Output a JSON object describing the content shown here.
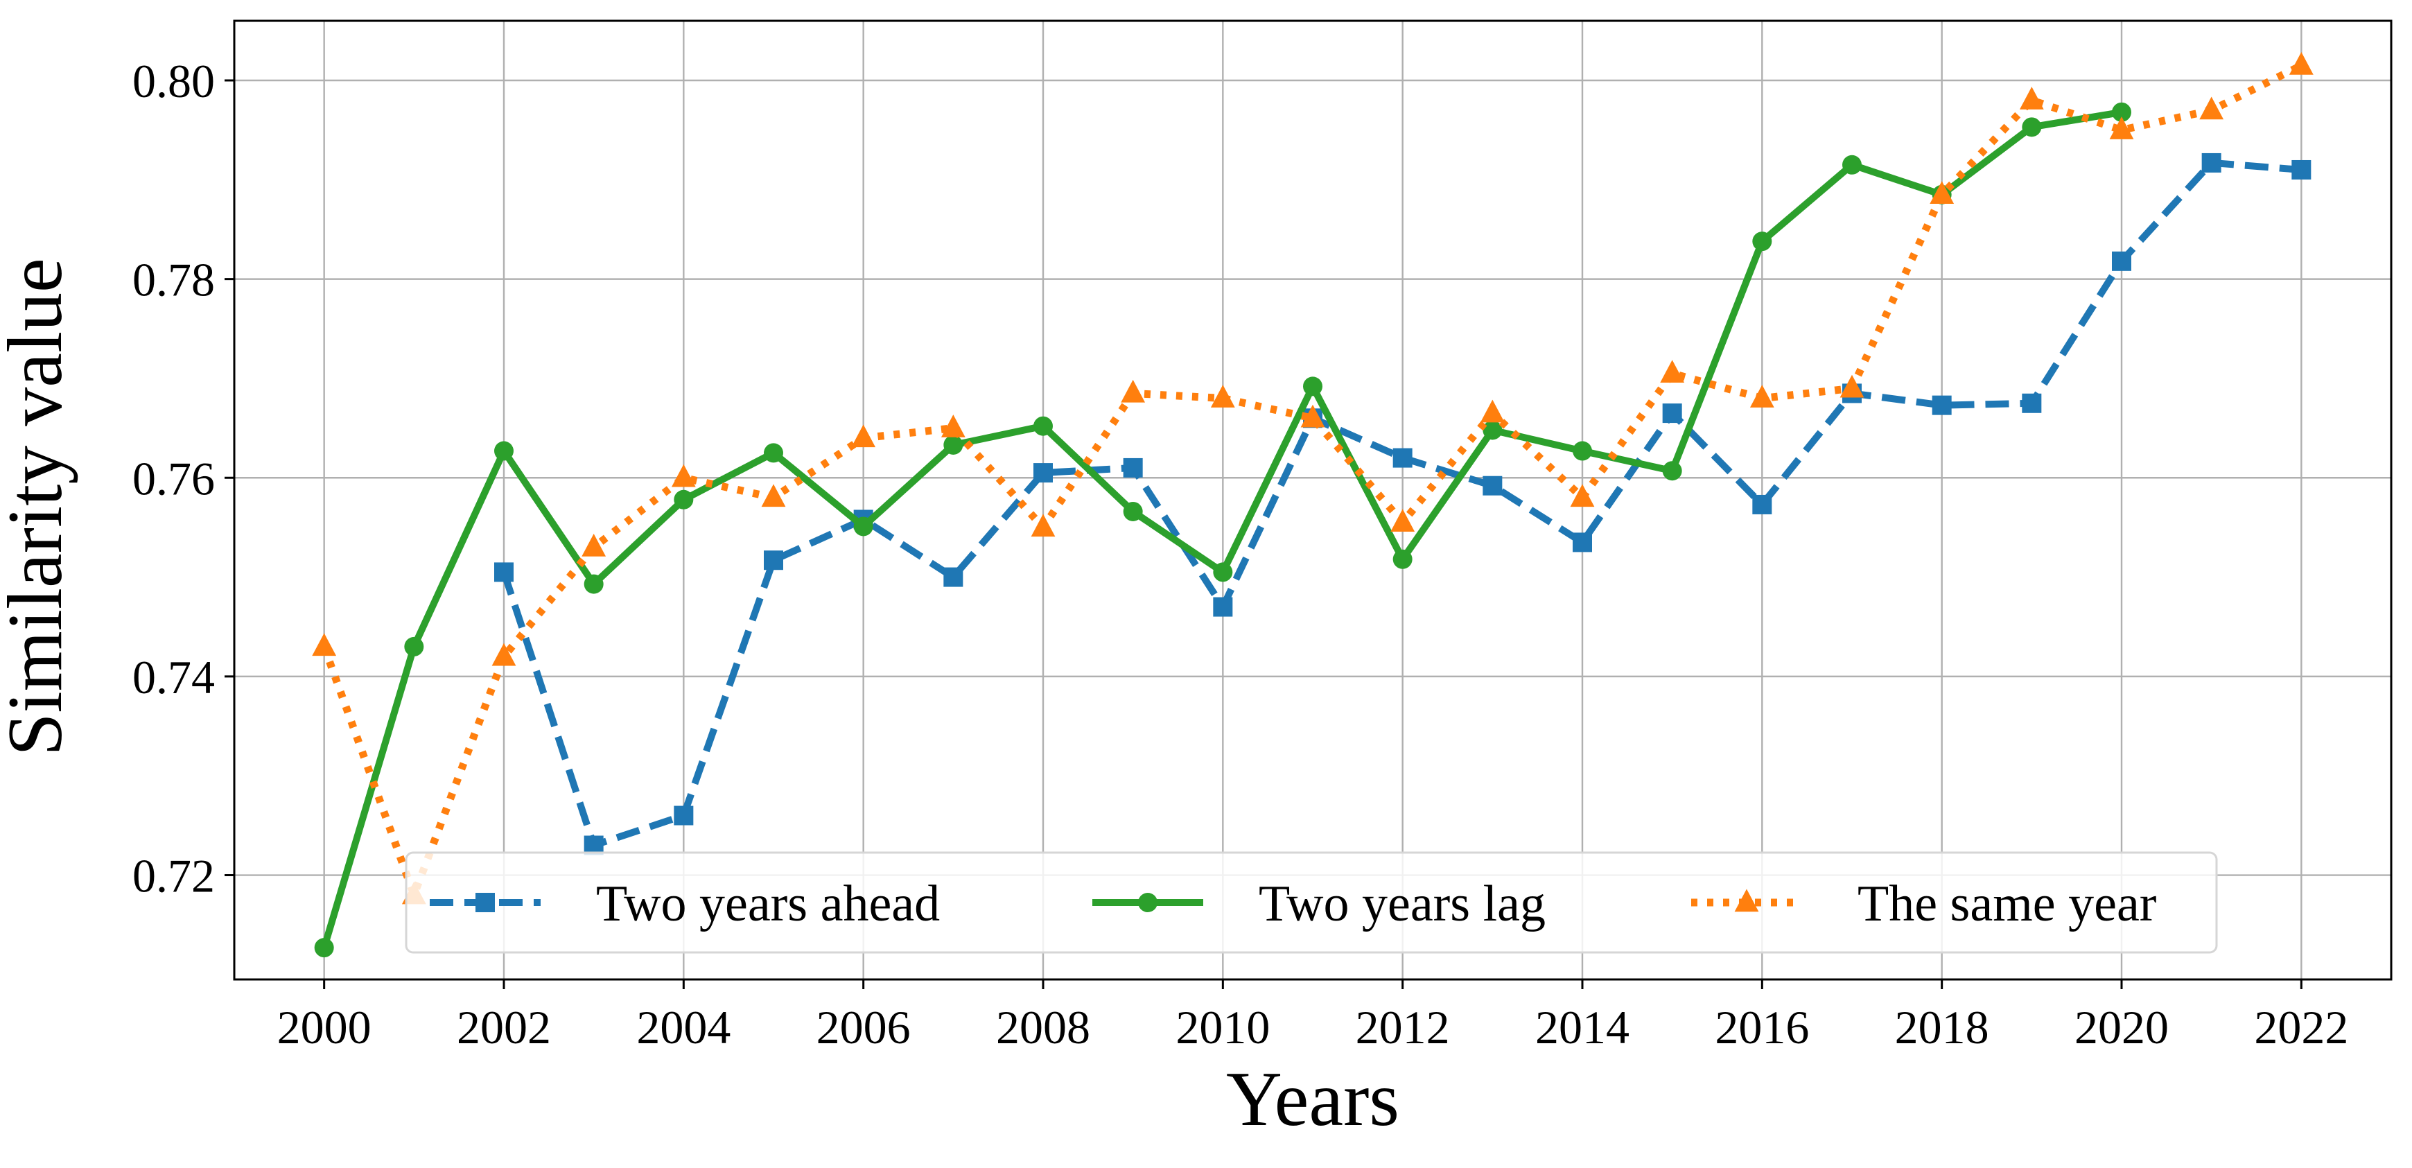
{
  "chart_data": {
    "type": "line",
    "title": "",
    "xlabel": "Years",
    "ylabel": "Similarity value",
    "xlim": [
      1999,
      2023
    ],
    "ylim": [
      0.7095,
      0.806
    ],
    "xticks": [
      2000,
      2002,
      2004,
      2006,
      2008,
      2010,
      2012,
      2014,
      2016,
      2018,
      2020,
      2022
    ],
    "xtick_labels": [
      "2000",
      "2002",
      "2004",
      "2006",
      "2008",
      "2010",
      "2012",
      "2014",
      "2016",
      "2018",
      "2020",
      "2022"
    ],
    "yticks": [
      0.72,
      0.74,
      0.76,
      0.78,
      0.8
    ],
    "ytick_labels": [
      "0.72",
      "0.74",
      "0.76",
      "0.78",
      "0.80"
    ],
    "grid": true,
    "legend_position": "lower-center",
    "series": [
      {
        "name": "Two years ahead",
        "color": "#1f77b4",
        "line_style": "dashed",
        "marker": "square",
        "x": [
          2002,
          2003,
          2004,
          2005,
          2006,
          2007,
          2008,
          2009,
          2010,
          2011,
          2012,
          2013,
          2014,
          2015,
          2016,
          2017,
          2018,
          2019,
          2020,
          2021,
          2022
        ],
        "y": [
          0.7505,
          0.723,
          0.726,
          0.7517,
          0.7558,
          0.75,
          0.7605,
          0.761,
          0.747,
          0.766,
          0.762,
          0.7592,
          0.7535,
          0.7665,
          0.7573,
          0.7685,
          0.7673,
          0.7675,
          0.7818,
          0.7917,
          0.791
        ]
      },
      {
        "name": "Two years lag",
        "color": "#2ca02c",
        "line_style": "solid",
        "marker": "circle",
        "x": [
          2000,
          2001,
          2002,
          2003,
          2004,
          2005,
          2006,
          2007,
          2008,
          2009,
          2010,
          2011,
          2012,
          2013,
          2014,
          2015,
          2016,
          2017,
          2018,
          2019,
          2020
        ],
        "y": [
          0.7127,
          0.743,
          0.7627,
          0.7493,
          0.7578,
          0.7625,
          0.7551,
          0.7633,
          0.7652,
          0.7566,
          0.7505,
          0.7692,
          0.7518,
          0.7648,
          0.7627,
          0.7607,
          0.7838,
          0.7915,
          0.7885,
          0.7953,
          0.7968
        ]
      },
      {
        "name": "The same year",
        "color": "#ff7f0e",
        "line_style": "dotted",
        "marker": "triangle",
        "x": [
          2000,
          2001,
          2002,
          2003,
          2004,
          2005,
          2006,
          2007,
          2008,
          2009,
          2010,
          2011,
          2012,
          2013,
          2014,
          2015,
          2016,
          2017,
          2018,
          2019,
          2020,
          2021,
          2022
        ],
        "y": [
          0.743,
          0.718,
          0.742,
          0.753,
          0.76,
          0.758,
          0.764,
          0.765,
          0.755,
          0.7685,
          0.768,
          0.766,
          0.7555,
          0.7665,
          0.758,
          0.7705,
          0.768,
          0.769,
          0.7885,
          0.798,
          0.795,
          0.797,
          0.8015
        ]
      }
    ]
  }
}
